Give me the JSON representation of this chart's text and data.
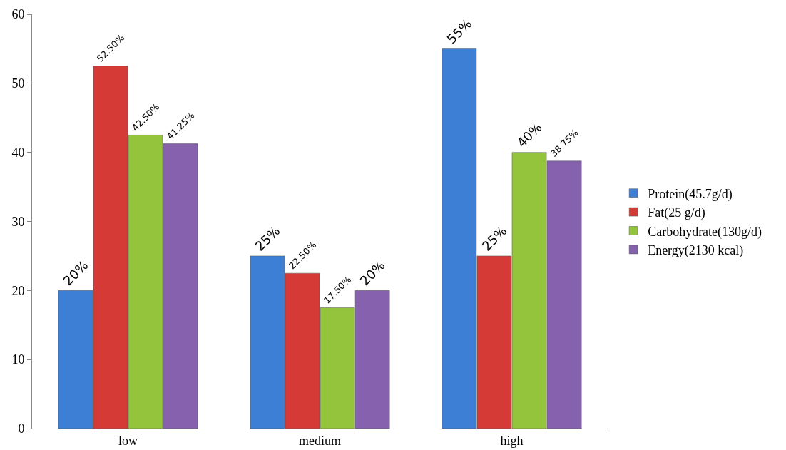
{
  "chart_data": {
    "type": "bar",
    "categories": [
      "low",
      "medium",
      "high"
    ],
    "series": [
      {
        "name": "Protein(45.7g/d)",
        "color": "#3c7fd4",
        "values": [
          20,
          25,
          55
        ],
        "value_labels": [
          "20%",
          "25%",
          "55%"
        ]
      },
      {
        "name": "Fat(25 g/d)",
        "color": "#d63a36",
        "values": [
          52.5,
          22.5,
          25
        ],
        "value_labels": [
          "52.50%",
          "22.50%",
          "25%"
        ]
      },
      {
        "name": "Carbohydrate(130g/d)",
        "color": "#94c43c",
        "values": [
          42.5,
          17.5,
          40
        ],
        "value_labels": [
          "42.50%",
          "17.50%",
          "40%"
        ]
      },
      {
        "name": "Energy(2130 kcal)",
        "color": "#8561ae",
        "values": [
          41.25,
          20,
          38.75
        ],
        "value_labels": [
          "41.25%",
          "20%",
          "38.75%"
        ]
      }
    ],
    "ylim": [
      0,
      60
    ],
    "yticks": [
      0,
      10,
      20,
      30,
      40,
      50,
      60
    ],
    "grid": false,
    "legend": "right"
  }
}
